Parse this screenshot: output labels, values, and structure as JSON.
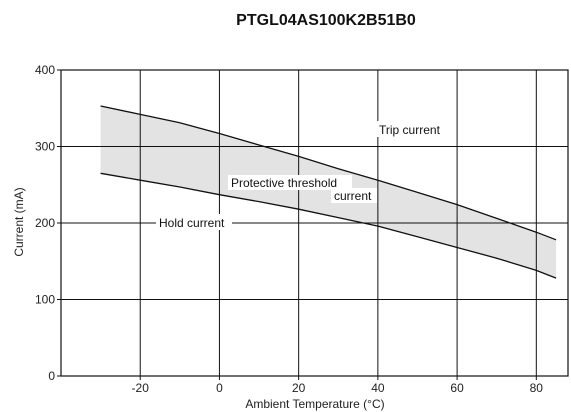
{
  "chart_data": {
    "type": "area",
    "title": "PTGL04AS100K2B51B0",
    "xlabel": "Ambient Temperature (°C)",
    "ylabel": "Current (mA)",
    "xlim": [
      -40,
      88
    ],
    "ylim": [
      0,
      400
    ],
    "xticks": [
      -20,
      0,
      20,
      40,
      60,
      80
    ],
    "yticks": [
      0,
      100,
      200,
      300,
      400
    ],
    "grid": true,
    "series": [
      {
        "name": "Trip current",
        "x": [
          -30,
          -20,
          -10,
          0,
          10,
          20,
          30,
          40,
          50,
          60,
          70,
          80,
          85
        ],
        "values": [
          353,
          342,
          331,
          317,
          302,
          287,
          271,
          256,
          240,
          224,
          206,
          188,
          178
        ]
      },
      {
        "name": "Hold current",
        "x": [
          -30,
          -20,
          -10,
          0,
          10,
          20,
          30,
          40,
          50,
          60,
          70,
          80,
          85
        ],
        "values": [
          265,
          256,
          247,
          237,
          228,
          218,
          207,
          196,
          182,
          168,
          154,
          138,
          128
        ]
      }
    ],
    "annotations": {
      "trip": "Trip current",
      "band_line1": "Protective threshold",
      "band_line2": "current",
      "hold": "Hold current"
    }
  }
}
